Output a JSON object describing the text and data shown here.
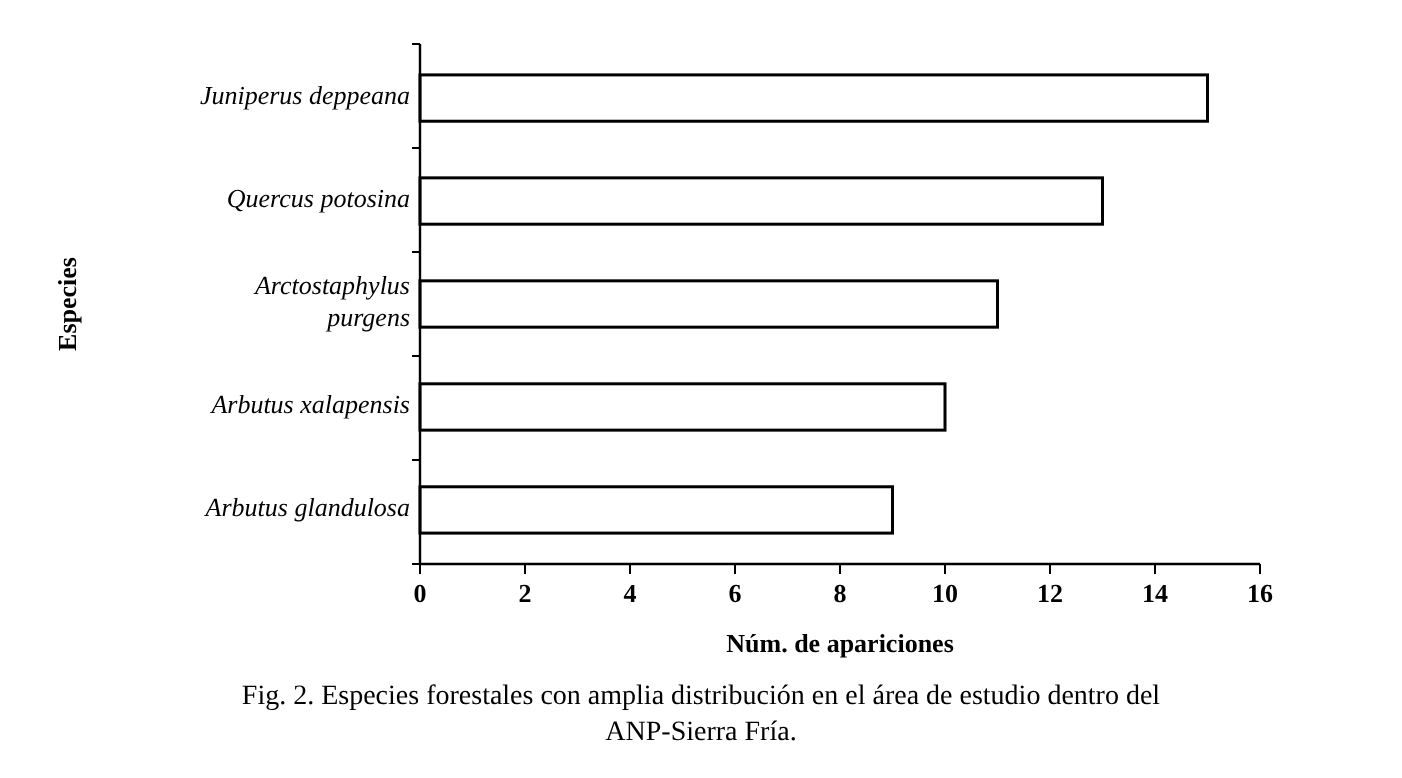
{
  "chart_data": {
    "type": "bar",
    "orientation": "horizontal",
    "categories": [
      "Juniperus deppeana",
      "Quercus potosina",
      "Arctostaphylus purgens",
      "Arbutus xalapensis",
      "Arbutus glandulosa"
    ],
    "values": [
      15,
      13,
      11,
      10,
      9
    ],
    "color": "#ffffff",
    "xlim": [
      0,
      16
    ],
    "xticks": [
      0,
      2,
      4,
      6,
      8,
      10,
      12,
      14,
      16
    ],
    "xlabel": "Núm. de apariciones",
    "ylabel": "Especies",
    "grid": false,
    "annotations": [
      "Fig. 2. Especies forestales con amplia distribución en el área de estudio dentro del ANP-Sierra Fría."
    ]
  }
}
